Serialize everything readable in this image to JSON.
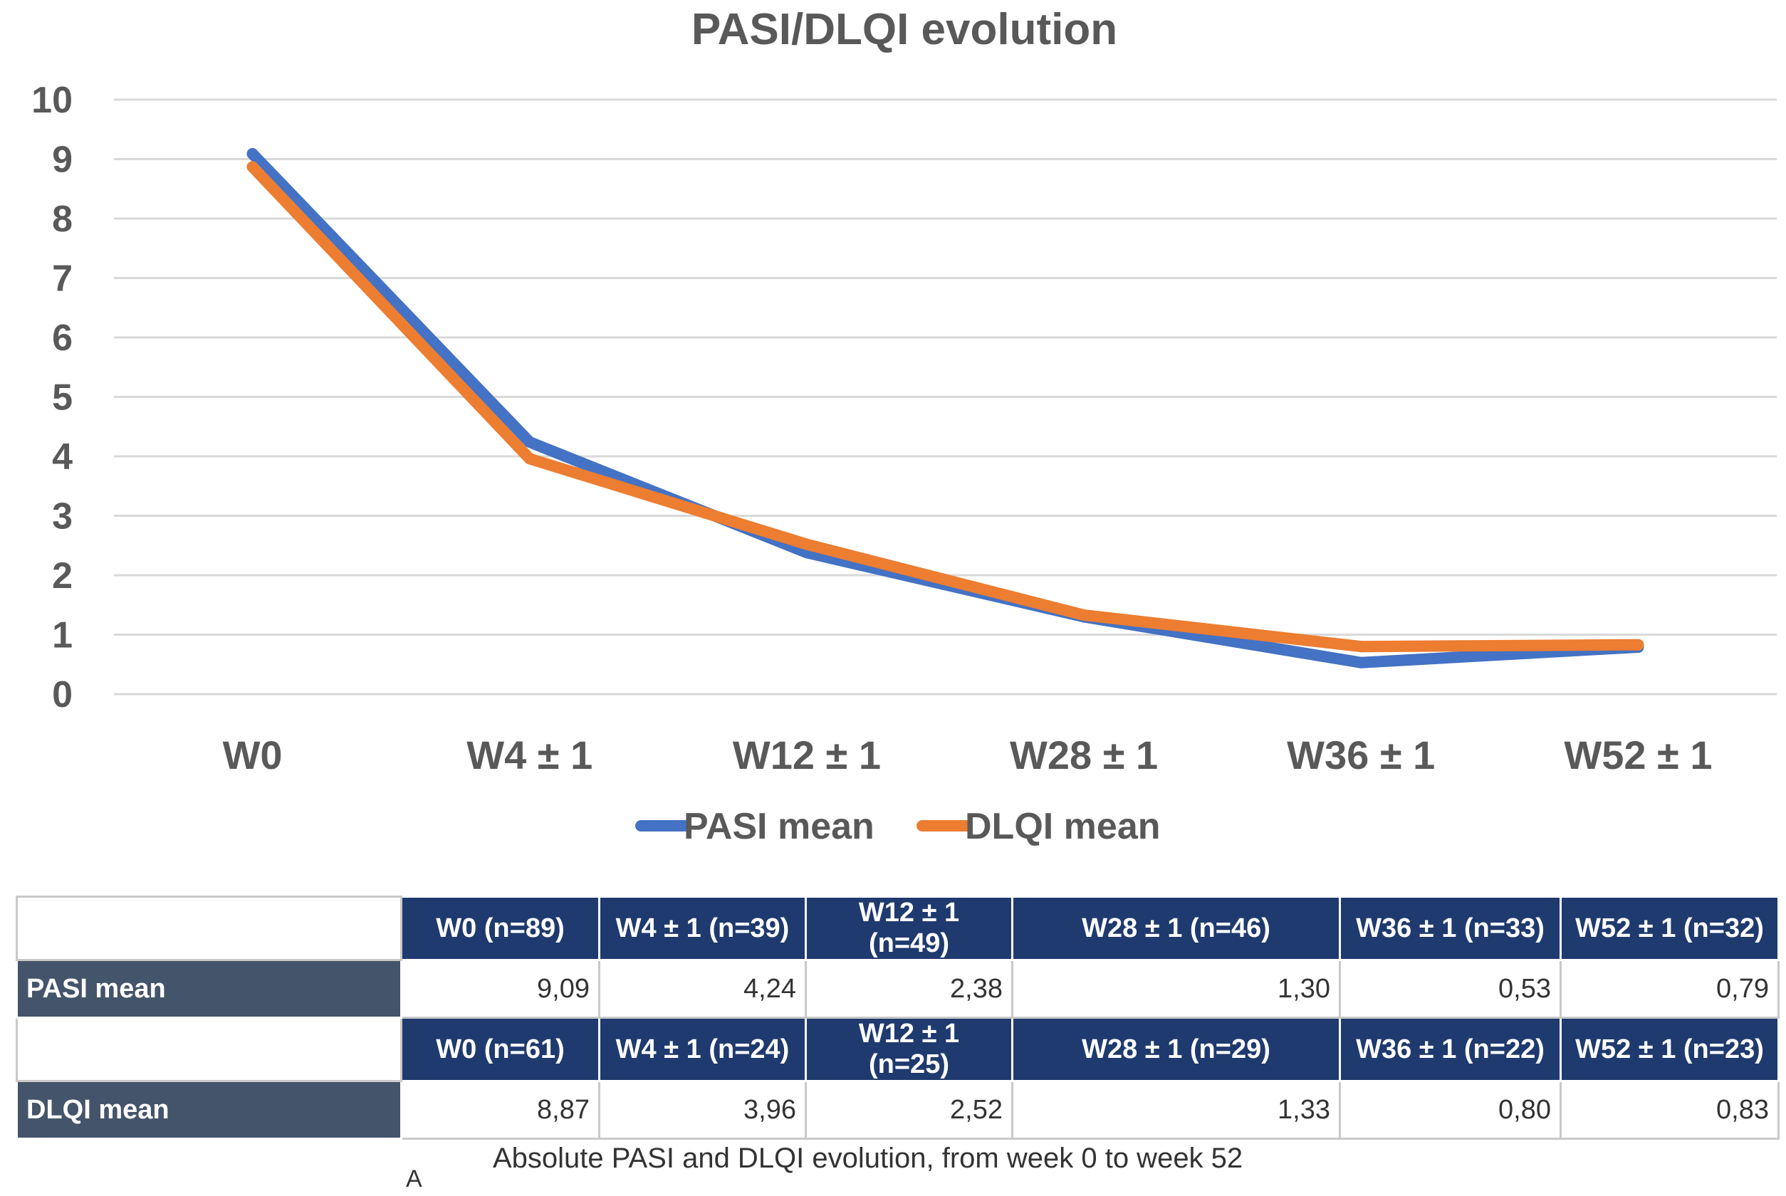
{
  "chart_data": {
    "type": "line",
    "title": "PASI/DLQI evolution",
    "categories": [
      "W0",
      "W4 ± 1",
      "W12 ± 1",
      "W28 ± 1",
      "W36 ± 1",
      "W52 ± 1"
    ],
    "series": [
      {
        "name": "PASI mean",
        "values": [
          9.09,
          4.24,
          2.38,
          1.3,
          0.53,
          0.79
        ],
        "color": "#4472c4"
      },
      {
        "name": "DLQI mean",
        "values": [
          8.87,
          3.96,
          2.52,
          1.33,
          0.8,
          0.83
        ],
        "color": "#ed7d31"
      }
    ],
    "ylim": [
      0,
      10
    ],
    "yticks": [
      "0",
      "1",
      "2",
      "3",
      "4",
      "5",
      "6",
      "7",
      "8",
      "9",
      "10"
    ],
    "grid": true,
    "legend_position": "bottom",
    "xlabel": "",
    "ylabel": ""
  },
  "table": {
    "pasi_headers": [
      "W0 (n=89)",
      "W4 ± 1 (n=39)",
      "W12 ± 1 (n=49)",
      "W28 ± 1 (n=46)",
      "W36 ± 1 (n=33)",
      "W52 ± 1 (n=32)"
    ],
    "pasi_label": "PASI mean",
    "pasi_values": [
      "9,09",
      "4,24",
      "2,38",
      "1,30",
      "0,53",
      "0,79"
    ],
    "dlqi_headers": [
      "W0 (n=61)",
      "W4 ± 1 (n=24)",
      "W12 ± 1 (n=25)",
      "W28 ± 1 (n=29)",
      "W36 ± 1 (n=22)",
      "W52 ± 1 (n=23)"
    ],
    "dlqi_label": "DLQI mean",
    "dlqi_values": [
      "8,87",
      "3,96",
      "2,52",
      "1,33",
      "0,80",
      "0,83"
    ]
  },
  "caption": "Absolute PASI and DLQI evolution, from week 0 to week 52",
  "panel_letter": "A"
}
